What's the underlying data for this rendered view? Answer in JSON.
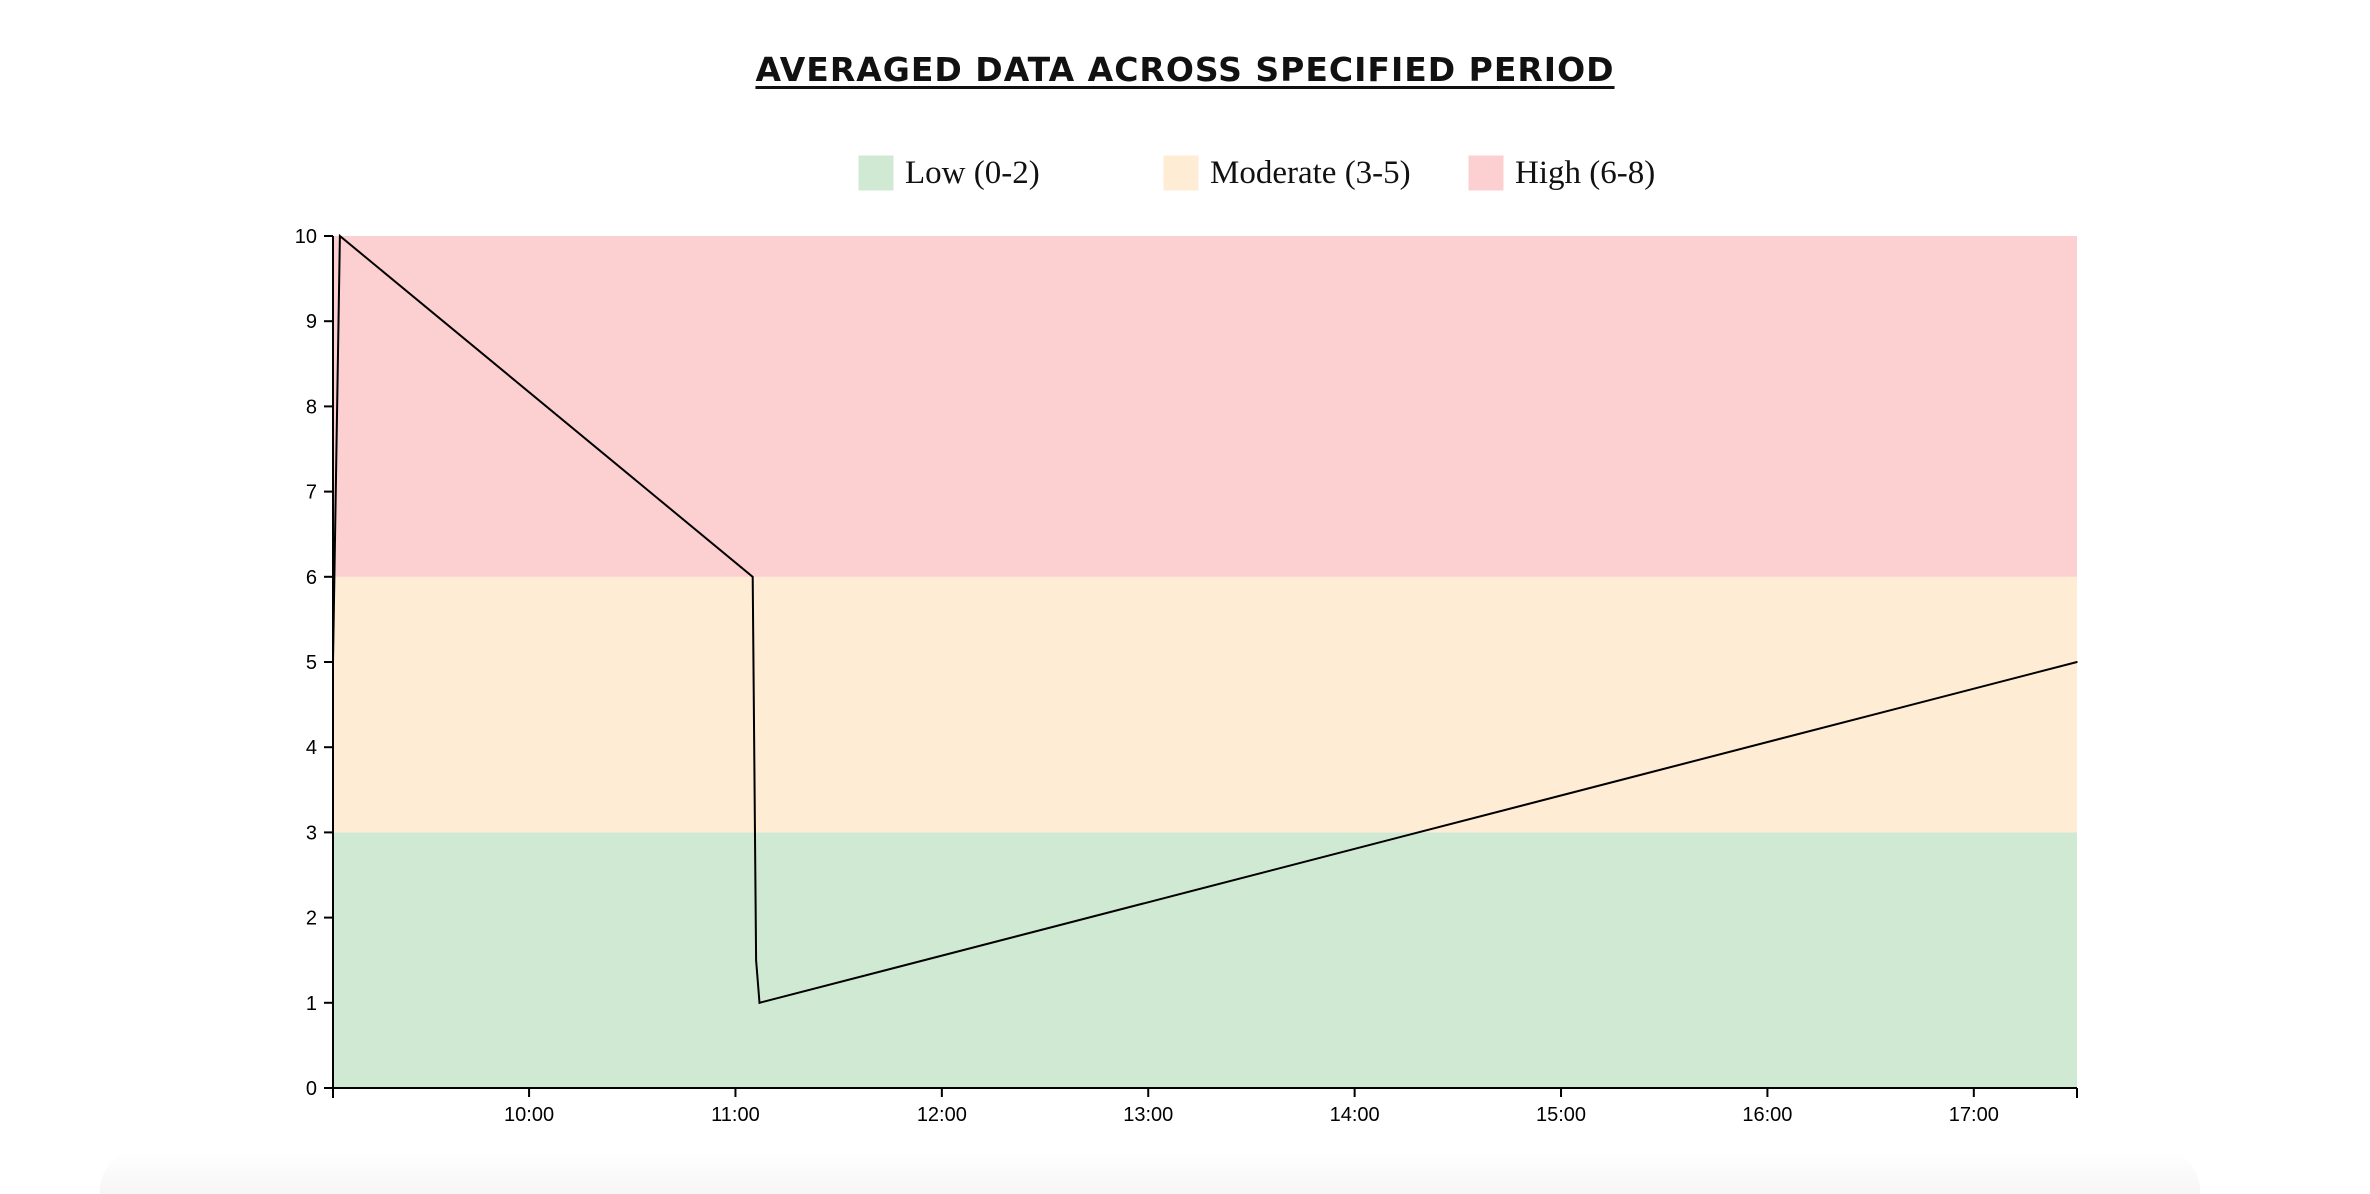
{
  "chart_data": {
    "type": "line",
    "title": "AVERAGED DATA ACROSS SPECIFIED PERIOD",
    "xlabel": "",
    "ylabel": "",
    "x_axis_type": "time",
    "xlim": [
      "09:03",
      "17:30"
    ],
    "ylim": [
      0,
      10
    ],
    "x_ticks": [
      "10:00",
      "11:00",
      "12:00",
      "13:00",
      "14:00",
      "15:00",
      "16:00",
      "17:00"
    ],
    "y_ticks": [
      0,
      1,
      2,
      3,
      4,
      5,
      6,
      7,
      8,
      9,
      10
    ],
    "grid": false,
    "legend_position": "top-center",
    "bands": [
      {
        "label": "Low (0-2)",
        "from": 0,
        "to": 3,
        "color": "#d0e9d3"
      },
      {
        "label": "Moderate (3-5)",
        "from": 3,
        "to": 6,
        "color": "#feecd4"
      },
      {
        "label": "High (6-8)",
        "from": 6,
        "to": 10,
        "color": "#fccfd1"
      }
    ],
    "series": [
      {
        "line_color": "#000000",
        "points": [
          {
            "x": "09:03",
            "y": 5
          },
          {
            "x": "09:05",
            "y": 10
          },
          {
            "x": "11:05",
            "y": 6
          },
          {
            "x": "11:06",
            "y": 1.5
          },
          {
            "x": "11:07",
            "y": 1
          },
          {
            "x": "17:30",
            "y": 5
          }
        ]
      }
    ]
  }
}
